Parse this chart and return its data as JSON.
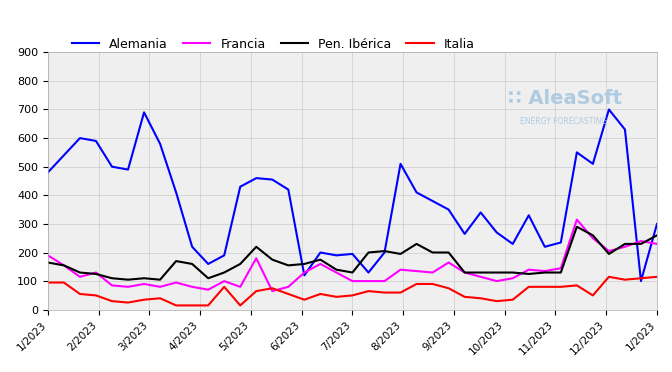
{
  "colors": {
    "Alemania": "#0000ff",
    "Francia": "#ff00ff",
    "Pen. Ibérica": "#000000",
    "Italia": "#ff0000"
  },
  "ylim": [
    0,
    900
  ],
  "yticks": [
    0,
    100,
    200,
    300,
    400,
    500,
    600,
    700,
    800,
    900
  ],
  "x_labels": [
    "1/2023",
    "2/2023",
    "3/2023",
    "4/2023",
    "5/2023",
    "6/2023",
    "7/2023",
    "8/2023",
    "9/2023",
    "10/2023",
    "11/2023",
    "12/2023",
    "1/2023"
  ],
  "background_color": "#ffffff",
  "grid_color": "#cccccc",
  "watermark_text": "AleaSoft",
  "watermark_sub": "ENERGY FORECASTING",
  "alemania": [
    480,
    540,
    600,
    590,
    500,
    490,
    690,
    580,
    410,
    220,
    160,
    190,
    430,
    460,
    455,
    420,
    120,
    200,
    190,
    195,
    130,
    200,
    510,
    410,
    380,
    350,
    265,
    340,
    270,
    230,
    330,
    220,
    235,
    550,
    510,
    700,
    630,
    100,
    300
  ],
  "francia": [
    190,
    155,
    115,
    130,
    85,
    80,
    90,
    80,
    95,
    80,
    70,
    100,
    80,
    180,
    65,
    80,
    130,
    160,
    130,
    100,
    100,
    100,
    140,
    135,
    130,
    165,
    130,
    115,
    100,
    110,
    140,
    135,
    145,
    315,
    250,
    205,
    220,
    240,
    230
  ],
  "iberica": [
    165,
    155,
    130,
    125,
    110,
    105,
    110,
    105,
    170,
    160,
    110,
    130,
    160,
    220,
    175,
    155,
    160,
    175,
    140,
    130,
    200,
    205,
    195,
    230,
    200,
    200,
    130,
    130,
    130,
    130,
    125,
    130,
    130,
    290,
    260,
    195,
    230,
    230,
    260
  ],
  "italia": [
    95,
    95,
    55,
    50,
    30,
    25,
    35,
    40,
    15,
    15,
    15,
    80,
    15,
    65,
    75,
    55,
    35,
    55,
    45,
    50,
    65,
    60,
    60,
    90,
    90,
    75,
    45,
    40,
    30,
    35,
    80,
    80,
    80,
    85,
    50,
    115,
    105,
    110,
    115
  ]
}
